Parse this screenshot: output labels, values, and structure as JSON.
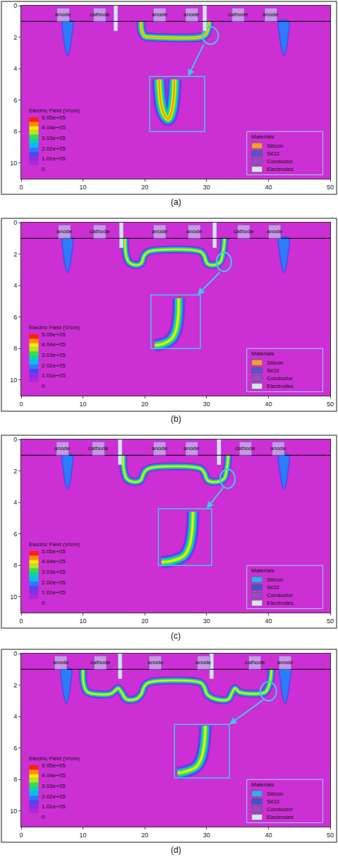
{
  "chart_data": [
    {
      "type": "field_map",
      "caption": "(a)",
      "xlim": [
        0,
        50
      ],
      "xticks": [
        0,
        10,
        20,
        30,
        40,
        50
      ],
      "ylim": [
        11,
        0
      ],
      "yticks": [
        0,
        2,
        4,
        6,
        8,
        10
      ],
      "interface_depth": 1,
      "background_field": 30000,
      "electrodes": [
        {
          "label": "anode",
          "x": 6.8
        },
        {
          "label": "cathode",
          "x": 12.7
        },
        {
          "label": "anode",
          "x": 22.4
        },
        {
          "label": "anode",
          "x": 27.6
        },
        {
          "label": "cathode",
          "x": 35.1
        },
        {
          "label": "anode",
          "x": 40.4
        }
      ],
      "gates": [
        15.3,
        29.7
      ],
      "field_paths": [
        {
          "x": [
            19.4,
            19.5,
            20.0,
            21.0,
            29.0,
            29.8,
            30.2,
            30.4
          ],
          "y": [
            1.0,
            1.6,
            1.95,
            2.0,
            2.0,
            1.85,
            1.5,
            1.0
          ],
          "value": 430000
        }
      ],
      "field_regions": [
        {
          "x": [
            6.7,
            8.3,
            8.2,
            7.9,
            7.5,
            7.1,
            6.8,
            6.7
          ],
          "y": [
            1.0,
            1.0,
            1.9,
            2.7,
            3.2,
            2.7,
            1.9,
            1.0
          ],
          "value": 190000
        },
        {
          "x": [
            41.7,
            43.3,
            43.2,
            42.9,
            42.5,
            42.1,
            41.8,
            41.7
          ],
          "y": [
            1.0,
            1.0,
            1.9,
            2.7,
            3.2,
            2.7,
            1.9,
            1.0
          ],
          "value": 190000
        }
      ],
      "inset_paths": [
        {
          "x": [
            22.3,
            22.6,
            23.1,
            23.8,
            24.4,
            24.7,
            24.8
          ],
          "y": [
            4.7,
            6.2,
            6.9,
            7.2,
            6.6,
            5.6,
            4.7
          ],
          "value": 430000
        }
      ],
      "colorbar": {
        "title": "Electric Field (V/cm)",
        "range": [
          0,
          505000
        ],
        "ticks": [
          {
            "value": 505000,
            "label": "5.05e+05"
          },
          {
            "value": 404000,
            "label": "4.04e+05"
          },
          {
            "value": 303000,
            "label": "3.03e+05"
          },
          {
            "value": 202000,
            "label": "2.02e+05"
          },
          {
            "value": 101000,
            "label": "1.01e+05"
          },
          0
        ],
        "colors": [
          "#cc2fd4",
          "#a82ad8",
          "#8c2ee4",
          "#4d46f0",
          "#2a7cf8",
          "#10b8f0",
          "#00d8b0",
          "#30e050",
          "#a8f010",
          "#f8e800",
          "#ff9000",
          "#ff2000"
        ]
      },
      "materials": {
        "title": "Materials",
        "items": [
          {
            "name": "Silicon",
            "color": "#f0a030"
          },
          {
            "name": "SiO2",
            "color": "#5058c8"
          },
          {
            "name": "Conductor",
            "color": "#9050c0"
          },
          {
            "name": "Electrodes",
            "color": "#d8e4f4"
          }
        ]
      }
    },
    {
      "type": "field_map",
      "caption": "(b)",
      "xlim": [
        0,
        50
      ],
      "xticks": [
        0,
        10,
        20,
        30,
        40,
        50
      ],
      "ylim": [
        11,
        0
      ],
      "yticks": [
        0,
        2,
        4,
        6,
        8,
        10
      ],
      "interface_depth": 1,
      "background_field": 30000,
      "electrodes": [
        {
          "label": "anode",
          "x": 7.0
        },
        {
          "label": "cathode",
          "x": 12.7
        },
        {
          "label": "anode",
          "x": 22.4
        },
        {
          "label": "anode",
          "x": 28.0
        },
        {
          "label": "cathode",
          "x": 36.0
        },
        {
          "label": "anode",
          "x": 41.0
        }
      ],
      "gates": [
        16.2,
        31.3
      ],
      "field_paths": [
        {
          "x": [
            16.8,
            16.9,
            17.4,
            18.5,
            19.4,
            19.9,
            20.6,
            29.0,
            29.6,
            30.1,
            31.2,
            32.2,
            32.7,
            32.9
          ],
          "y": [
            1.0,
            1.9,
            2.5,
            2.7,
            2.6,
            2.1,
            1.85,
            1.85,
            2.1,
            2.6,
            2.7,
            2.5,
            1.8,
            1.0
          ],
          "value": 420000
        }
      ],
      "field_regions": [
        {
          "x": [
            6.7,
            8.3,
            8.2,
            7.9,
            7.5,
            7.1,
            6.8,
            6.7
          ],
          "y": [
            1.0,
            1.0,
            1.9,
            2.7,
            3.2,
            2.7,
            1.9,
            1.0
          ],
          "value": 190000
        },
        {
          "x": [
            41.7,
            43.3,
            43.2,
            42.9,
            42.5,
            42.1,
            41.8,
            41.7
          ],
          "y": [
            1.0,
            1.0,
            1.9,
            2.7,
            3.2,
            2.7,
            1.9,
            1.0
          ],
          "value": 190000
        }
      ],
      "inset_paths": [
        {
          "x": [
            25.5,
            25.4,
            25.0,
            24.3,
            23.0,
            21.6
          ],
          "y": [
            4.8,
            6.0,
            6.9,
            7.4,
            7.7,
            7.8
          ],
          "value": 420000
        }
      ],
      "colorbar": {
        "title": "Electric Field (V/cm)",
        "range": [
          0,
          505000
        ],
        "ticks": [
          {
            "value": 505000,
            "label": "5.05e+05"
          },
          {
            "value": 404000,
            "label": "4.04e+05"
          },
          {
            "value": 303000,
            "label": "3.03e+05"
          },
          {
            "value": 202000,
            "label": "2.02e+05"
          },
          {
            "value": 101000,
            "label": "1.01e+05"
          },
          0
        ],
        "colors": [
          "#cc2fd4",
          "#a82ad8",
          "#8c2ee4",
          "#4d46f0",
          "#2a7cf8",
          "#10b8f0",
          "#00d8b0",
          "#30e050",
          "#a8f010",
          "#f8e800",
          "#ff9000",
          "#ff2000"
        ]
      },
      "materials": {
        "title": "Materials",
        "items": [
          {
            "name": "Silicon",
            "color": "#f0a030"
          },
          {
            "name": "SiO2",
            "color": "#5058c8"
          },
          {
            "name": "Conductor",
            "color": "#9050c0"
          },
          {
            "name": "Electrodes",
            "color": "#d8e4f4"
          }
        ]
      }
    },
    {
      "type": "field_map",
      "caption": "(c)",
      "xlim": [
        0,
        50
      ],
      "xticks": [
        0,
        10,
        20,
        30,
        40,
        50
      ],
      "ylim": [
        11,
        0
      ],
      "yticks": [
        0,
        2,
        4,
        6,
        8,
        10
      ],
      "interface_depth": 1,
      "background_field": 30000,
      "electrodes": [
        {
          "label": "anode",
          "x": 6.7
        },
        {
          "label": "cathode",
          "x": 12.5
        },
        {
          "label": "anode",
          "x": 22.4
        },
        {
          "label": "anode",
          "x": 27.6
        },
        {
          "label": "cathode",
          "x": 36.3
        },
        {
          "label": "anode",
          "x": 41.6
        }
      ],
      "gates": [
        16.0,
        32.0
      ],
      "field_paths": [
        {
          "x": [
            16.5,
            16.6,
            17.1,
            18.2,
            19.3,
            19.9,
            20.6,
            29.0,
            29.6,
            30.2,
            31.5,
            32.8,
            33.3,
            33.5
          ],
          "y": [
            1.0,
            1.9,
            2.5,
            2.7,
            2.6,
            2.1,
            1.85,
            1.85,
            2.1,
            2.6,
            2.7,
            2.5,
            1.8,
            1.0
          ],
          "value": 420000
        }
      ],
      "field_regions": [
        {
          "x": [
            6.7,
            8.3,
            8.2,
            7.9,
            7.5,
            7.1,
            6.8,
            6.7
          ],
          "y": [
            1.0,
            1.0,
            1.9,
            2.7,
            3.2,
            2.7,
            1.9,
            1.0
          ],
          "value": 190000
        },
        {
          "x": [
            41.7,
            43.3,
            43.2,
            42.9,
            42.5,
            42.1,
            41.8,
            41.7
          ],
          "y": [
            1.0,
            1.0,
            1.9,
            2.7,
            3.2,
            2.7,
            1.9,
            1.0
          ],
          "value": 190000
        }
      ],
      "inset_paths": [
        {
          "x": [
            27.8,
            27.6,
            27.1,
            26.3,
            24.5,
            22.7
          ],
          "y": [
            4.6,
            6.0,
            6.9,
            7.4,
            7.7,
            7.8
          ],
          "value": 420000
        }
      ],
      "colorbar": {
        "title": "Electric Field (V/cm)",
        "range": [
          0,
          505000
        ],
        "ticks": [
          {
            "value": 505000,
            "label": "5.05e+05"
          },
          {
            "value": 404000,
            "label": "4.04e+05"
          },
          {
            "value": 303000,
            "label": "3.03e+05"
          },
          {
            "value": 202000,
            "label": "2.02e+05"
          },
          {
            "value": 101000,
            "label": "1.01e+05"
          },
          0
        ],
        "colors": [
          "#cc2fd4",
          "#a82ad8",
          "#8c2ee4",
          "#4d46f0",
          "#2a7cf8",
          "#10b8f0",
          "#00d8b0",
          "#30e050",
          "#a8f010",
          "#f8e800",
          "#ff9000",
          "#ff2000"
        ]
      },
      "materials": {
        "title": "Materials",
        "items": [
          {
            "name": "Silicon",
            "color": "#30b0f0"
          },
          {
            "name": "SiO2",
            "color": "#3a58c8"
          },
          {
            "name": "Conductor",
            "color": "#9050c0"
          },
          {
            "name": "Electrodes",
            "color": "#d8e4f4"
          }
        ]
      }
    },
    {
      "type": "field_map",
      "caption": "(d)",
      "xlim": [
        0,
        50
      ],
      "xticks": [
        0,
        10,
        20,
        30,
        40,
        50
      ],
      "ylim": [
        11,
        0
      ],
      "yticks": [
        0,
        2,
        4,
        6,
        8,
        10
      ],
      "interface_depth": 1,
      "background_field": 30000,
      "electrodes": [
        {
          "label": "anode",
          "x": 6.4
        },
        {
          "label": "cathode",
          "x": 12.8
        },
        {
          "label": "anode",
          "x": 21.7
        },
        {
          "label": "anode",
          "x": 29.5
        },
        {
          "label": "cathode",
          "x": 37.8
        },
        {
          "label": "anode",
          "x": 42.7
        }
      ],
      "gates": [
        16.0,
        30.8
      ],
      "field_paths": [
        {
          "x": [
            10.0,
            10.1,
            10.6,
            11.5,
            14.5,
            15.2,
            15.7,
            16.3,
            17.0,
            18.5,
            19.4,
            19.9,
            20.6,
            29.0,
            29.6,
            30.1,
            31.5,
            33.5,
            34.1,
            34.6,
            35.3,
            38.5,
            39.5,
            40.2,
            40.5
          ],
          "y": [
            1.0,
            1.9,
            2.4,
            2.55,
            2.55,
            2.35,
            2.2,
            2.5,
            2.9,
            2.9,
            2.6,
            2.1,
            1.85,
            1.85,
            2.1,
            2.6,
            2.9,
            2.9,
            2.5,
            2.2,
            2.45,
            2.55,
            2.45,
            1.9,
            1.0
          ],
          "value": 420000
        }
      ],
      "field_regions": [
        {
          "x": [
            6.5,
            8.1,
            8.0,
            7.7,
            7.3,
            6.9,
            6.6,
            6.5
          ],
          "y": [
            1.0,
            1.0,
            1.9,
            2.7,
            3.2,
            2.7,
            1.9,
            1.0
          ],
          "value": 190000
        },
        {
          "x": [
            41.9,
            43.5,
            43.4,
            43.1,
            42.7,
            42.3,
            42.0,
            41.9
          ],
          "y": [
            1.0,
            1.0,
            1.9,
            2.7,
            3.2,
            2.7,
            1.9,
            1.0
          ],
          "value": 190000
        }
      ],
      "inset_paths": [
        {
          "x": [
            29.8,
            29.6,
            29.1,
            28.3,
            26.6,
            25.3
          ],
          "y": [
            4.6,
            5.8,
            6.7,
            7.2,
            7.5,
            7.6
          ],
          "value": 420000
        }
      ],
      "colorbar": {
        "title": "Electric Field (V/cm)",
        "range": [
          0,
          505000
        ],
        "ticks": [
          {
            "value": 505000,
            "label": "5.05e+05"
          },
          {
            "value": 404000,
            "label": "4.04e+05"
          },
          {
            "value": 303000,
            "label": "3.03e+05"
          },
          {
            "value": 202000,
            "label": "2.02e+05"
          },
          {
            "value": 101000,
            "label": "1.01e+05"
          },
          0
        ],
        "colors": [
          "#cc2fd4",
          "#a82ad8",
          "#8c2ee4",
          "#4d46f0",
          "#2a7cf8",
          "#10b8f0",
          "#00d8b0",
          "#30e050",
          "#a8f010",
          "#f8e800",
          "#ff9000",
          "#ff2000"
        ]
      },
      "materials": {
        "title": "Materials",
        "items": [
          {
            "name": "Silicon",
            "color": "#30b0f0"
          },
          {
            "name": "SiO2",
            "color": "#3a58c8"
          },
          {
            "name": "Conductor",
            "color": "#9050c0"
          },
          {
            "name": "Electrodes",
            "color": "#d8e4f4"
          }
        ]
      }
    }
  ]
}
